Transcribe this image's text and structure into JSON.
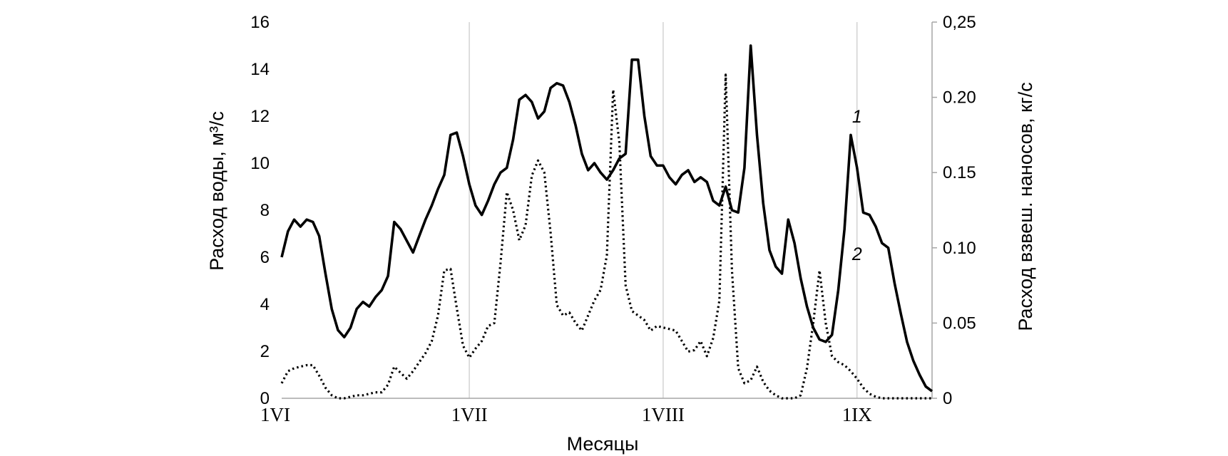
{
  "chart_data": {
    "type": "line",
    "xlabel": "Месяцы",
    "ylabel_left": "Расход воды, м³/с",
    "ylabel_right": "Расход взвеш. наносов, кг/с",
    "x_tick_labels": [
      "1VI",
      "1VII",
      "1VIII",
      "1IX"
    ],
    "x_tick_days": [
      0,
      30,
      61,
      92
    ],
    "xlim": [
      0,
      104
    ],
    "ylim_left": [
      0,
      16
    ],
    "ylim_right": [
      0,
      0.25
    ],
    "left_ticks": [
      "0",
      "2",
      "4",
      "6",
      "8",
      "10",
      "12",
      "14",
      "16"
    ],
    "right_ticks": [
      "0",
      "0.05",
      "0.10",
      "0.15",
      "0.20",
      "0,25"
    ],
    "grid": "vertical",
    "series": [
      {
        "label": "1",
        "axis": "left",
        "style": "solid",
        "x": [
          0,
          1,
          2,
          3,
          4,
          5,
          6,
          7,
          8,
          9,
          10,
          11,
          12,
          13,
          14,
          15,
          16,
          17,
          18,
          19,
          20,
          21,
          22,
          23,
          24,
          25,
          26,
          27,
          28,
          29,
          30,
          31,
          32,
          33,
          34,
          35,
          36,
          37,
          38,
          39,
          40,
          41,
          42,
          43,
          44,
          45,
          46,
          47,
          48,
          49,
          50,
          51,
          52,
          53,
          54,
          55,
          56,
          57,
          58,
          59,
          60,
          61,
          62,
          63,
          64,
          65,
          66,
          67,
          68,
          69,
          70,
          71,
          72,
          73,
          74,
          75,
          76,
          77,
          78,
          79,
          80,
          81,
          82,
          83,
          84,
          85,
          86,
          87,
          88,
          89,
          90,
          91,
          92,
          93,
          94,
          95,
          96,
          97,
          98,
          99,
          100,
          101,
          102,
          103,
          104
        ],
        "values": [
          6.0,
          7.1,
          7.6,
          7.3,
          7.6,
          7.5,
          6.9,
          5.3,
          3.8,
          2.9,
          2.6,
          3.0,
          3.8,
          4.1,
          3.9,
          4.3,
          4.6,
          5.2,
          7.5,
          7.2,
          6.7,
          6.2,
          6.9,
          7.6,
          8.2,
          8.9,
          9.5,
          11.2,
          11.3,
          10.3,
          9.1,
          8.2,
          7.8,
          8.4,
          9.1,
          9.6,
          9.8,
          11.0,
          12.7,
          12.9,
          12.6,
          11.9,
          12.2,
          13.2,
          13.4,
          13.3,
          12.6,
          11.6,
          10.4,
          9.7,
          10.0,
          9.6,
          9.3,
          9.7,
          10.2,
          10.4,
          14.4,
          14.4,
          12.0,
          10.3,
          9.9,
          9.9,
          9.4,
          9.1,
          9.5,
          9.7,
          9.2,
          9.4,
          9.2,
          8.4,
          8.2,
          9.0,
          8.0,
          7.9,
          9.8,
          15.0,
          11.2,
          8.3,
          6.3,
          5.6,
          5.3,
          7.6,
          6.6,
          5.1,
          3.9,
          3.0,
          2.5,
          2.4,
          2.7,
          4.6,
          7.2,
          11.2,
          9.8,
          7.9,
          7.8,
          7.3,
          6.6,
          6.4,
          4.9,
          3.6,
          2.4,
          1.6,
          1.0,
          0.5,
          0.3
        ]
      },
      {
        "label": "2",
        "axis": "right",
        "style": "dotted",
        "x": [
          0,
          1,
          2,
          3,
          4,
          5,
          6,
          7,
          8,
          9,
          10,
          11,
          12,
          13,
          14,
          15,
          16,
          17,
          18,
          19,
          20,
          21,
          22,
          23,
          24,
          25,
          26,
          27,
          28,
          29,
          30,
          31,
          32,
          33,
          34,
          35,
          36,
          37,
          38,
          39,
          40,
          41,
          42,
          43,
          44,
          45,
          46,
          47,
          48,
          49,
          50,
          51,
          52,
          53,
          54,
          55,
          56,
          57,
          58,
          59,
          60,
          61,
          62,
          63,
          64,
          65,
          66,
          67,
          68,
          69,
          70,
          71,
          72,
          73,
          74,
          75,
          76,
          77,
          78,
          79,
          80,
          81,
          82,
          83,
          84,
          85,
          86,
          87,
          88,
          89,
          90,
          91,
          92,
          93,
          94,
          95,
          96,
          97,
          98,
          99,
          100,
          101,
          102,
          103,
          104
        ],
        "values": [
          0.01,
          0.018,
          0.02,
          0.021,
          0.022,
          0.022,
          0.015,
          0.007,
          0.002,
          0.0,
          0.0,
          0.001,
          0.002,
          0.002,
          0.003,
          0.004,
          0.004,
          0.009,
          0.021,
          0.017,
          0.013,
          0.018,
          0.024,
          0.03,
          0.038,
          0.055,
          0.085,
          0.086,
          0.06,
          0.035,
          0.027,
          0.033,
          0.038,
          0.048,
          0.05,
          0.09,
          0.137,
          0.125,
          0.105,
          0.115,
          0.148,
          0.158,
          0.15,
          0.11,
          0.062,
          0.055,
          0.057,
          0.05,
          0.045,
          0.055,
          0.065,
          0.072,
          0.095,
          0.205,
          0.17,
          0.075,
          0.058,
          0.055,
          0.052,
          0.045,
          0.048,
          0.047,
          0.046,
          0.045,
          0.038,
          0.031,
          0.032,
          0.038,
          0.028,
          0.04,
          0.065,
          0.215,
          0.085,
          0.02,
          0.01,
          0.012,
          0.021,
          0.011,
          0.005,
          0.002,
          0.0,
          0.0,
          0.0,
          0.002,
          0.02,
          0.05,
          0.085,
          0.05,
          0.028,
          0.024,
          0.022,
          0.018,
          0.013,
          0.007,
          0.003,
          0.001,
          0.0,
          0.0,
          0.0,
          0.0,
          0.0,
          0.0,
          0.0,
          0.0,
          0.0
        ]
      }
    ]
  }
}
